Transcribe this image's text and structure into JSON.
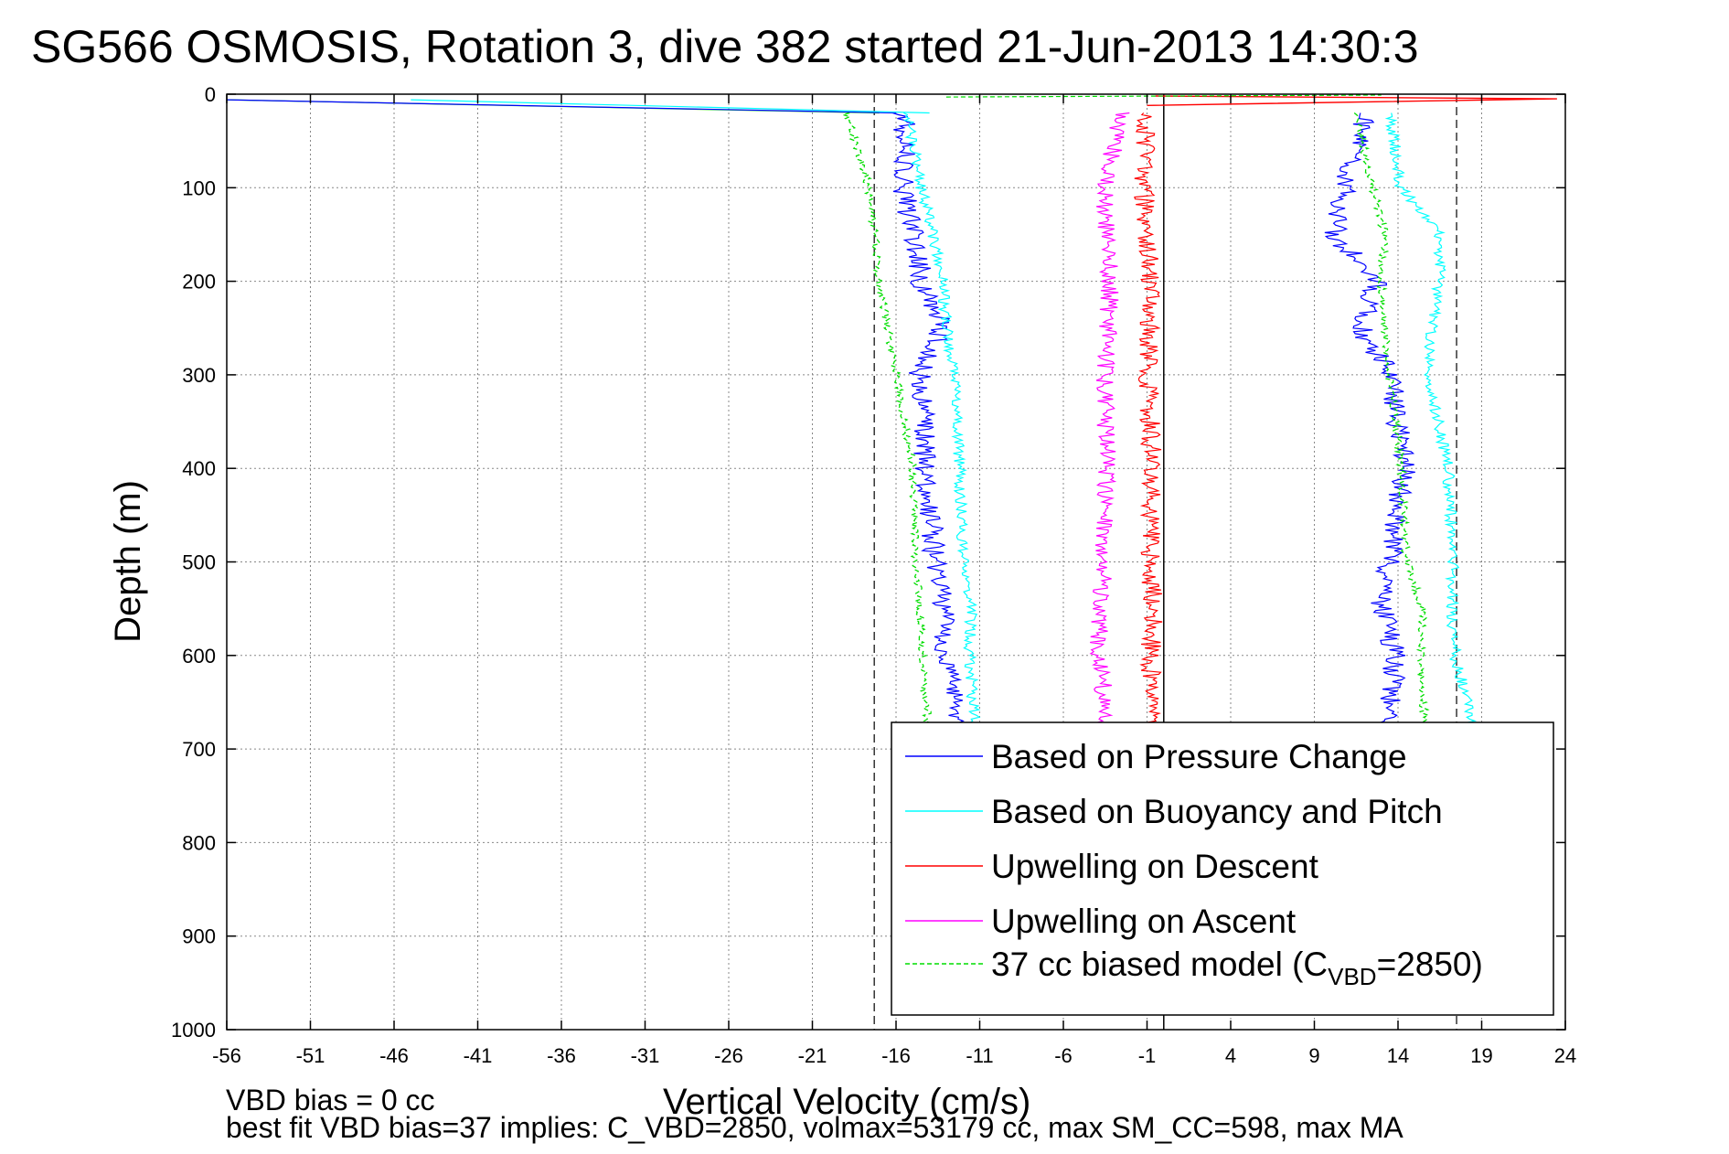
{
  "chart_data": {
    "type": "line",
    "title": "SG566 OSMOSIS, Rotation 3, dive 382 started 21-Jun-2013 14:30:3",
    "xlabel": "Vertical Velocity (cm/s)",
    "ylabel": "Depth (m)",
    "xlim": [
      -56,
      24
    ],
    "ylim": [
      0,
      1000
    ],
    "y_reversed": true,
    "grid": true,
    "x_ticks": [
      "-56",
      "-51",
      "-46",
      "-41",
      "-36",
      "-31",
      "-26",
      "-21",
      "-16",
      "-11",
      "-6",
      "-1",
      "4",
      "9",
      "14",
      "19",
      "24"
    ],
    "y_ticks": [
      "0",
      "100",
      "200",
      "300",
      "400",
      "500",
      "600",
      "700",
      "800",
      "900",
      "1000"
    ],
    "legend_position": "bottom-right",
    "legend": [
      {
        "label": "Based on Pressure Change",
        "color": "#0000ff",
        "dash": "solid"
      },
      {
        "label": "Based on Buoyancy and Pitch",
        "color": "#00ffff",
        "dash": "solid"
      },
      {
        "label": "Upwelling on Descent",
        "color": "#ff0000",
        "dash": "solid"
      },
      {
        "label": "Upwelling on Ascent",
        "color": "#ff00ff",
        "dash": "solid"
      },
      {
        "label_main": "37 cc biased model (C",
        "label_sub": "VBD",
        "label_tail": "=2850)",
        "color": "#00dd00",
        "dash": "dashed"
      }
    ],
    "reference_lines": {
      "vertical_dashed": [
        -17.3,
        17.5
      ],
      "vertical_solid": [
        0
      ]
    },
    "series": [
      {
        "name": "Based on Pressure Change",
        "color": "#0000ff",
        "x_descent": [
          -15.5,
          -15.6,
          -14.9,
          -14.5,
          -13.2,
          -14.6,
          -14.2,
          -13.7,
          -13.2,
          -13.1,
          -12.6,
          -12.5
        ],
        "x_ascent": [
          12.0,
          10.8,
          10.2,
          12.7,
          11.8,
          13.5,
          14.4,
          13.5,
          13.0,
          13.8,
          13.6,
          13.2
        ],
        "y": [
          20,
          100,
          150,
          200,
          250,
          300,
          400,
          500,
          550,
          600,
          650,
          700
        ]
      },
      {
        "name": "Based on Buoyancy and Pitch",
        "color": "#00ffff",
        "x_descent": [
          -15.3,
          -14.5,
          -13.8,
          -13.2,
          -13.0,
          -12.5,
          -12.2,
          -12.0,
          -11.5,
          -11.6,
          -11.4,
          -11.2
        ],
        "x_ascent": [
          13.5,
          14.2,
          16.5,
          16.5,
          16.0,
          15.8,
          17.0,
          17.3,
          17.2,
          17.4,
          18.2,
          18.4
        ],
        "y": [
          20,
          100,
          150,
          200,
          250,
          300,
          400,
          500,
          550,
          600,
          650,
          700
        ]
      },
      {
        "name": "Upwelling on Descent",
        "color": "#ff0000",
        "x": [
          -1.0,
          -1.2,
          -0.8,
          -0.9,
          -0.7,
          -0.8,
          -0.6,
          -0.8,
          -0.7,
          -0.9
        ],
        "y": [
          20,
          100,
          200,
          300,
          400,
          500,
          550,
          600,
          650,
          700
        ]
      },
      {
        "name": "Upwelling on Ascent",
        "color": "#ff00ff",
        "x": [
          -2.5,
          -3.6,
          -3.2,
          -3.5,
          -3.4,
          -3.6,
          -3.8,
          -3.9,
          -3.5,
          -3.8
        ],
        "y": [
          20,
          100,
          200,
          300,
          400,
          500,
          550,
          600,
          650,
          700
        ]
      },
      {
        "name": "37 cc biased model (CVBD=2850)",
        "color": "#00dd00",
        "x_descent": [
          -19,
          -17.6,
          -17.3,
          -17,
          -16.5,
          -16,
          -15,
          -14.8,
          -14.6,
          -14.4,
          -14.2,
          -14
        ],
        "x_ascent": [
          11.5,
          12.5,
          13.2,
          13.0,
          13.2,
          13.5,
          14.2,
          14.5,
          15.5,
          15.3,
          15.5,
          15.8
        ],
        "y": [
          20,
          100,
          150,
          200,
          250,
          300,
          400,
          500,
          550,
          600,
          650,
          700
        ]
      }
    ]
  },
  "footer": {
    "line1": "VBD bias = 0 cc",
    "line2": "best fit VBD bias=37 implies: C_VBD=2850, volmax=53179 cc, max SM_CC=598, max MA"
  }
}
